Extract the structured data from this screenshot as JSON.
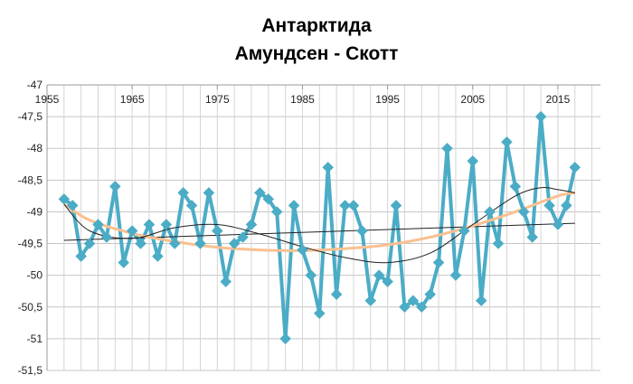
{
  "chart_data": {
    "type": "line",
    "title": "Антарктида",
    "subtitle": "Амундсен - Скотт",
    "xlabel": "",
    "ylabel": "",
    "xlim": [
      1955,
      2020
    ],
    "ylim": [
      -51.5,
      -47
    ],
    "x_ticks": [
      "1955",
      "1965",
      "1975",
      "1985",
      "1995",
      "2005",
      "2015"
    ],
    "y_ticks": [
      "-47",
      "-47,5",
      "-48",
      "-48,5",
      "-49",
      "-49,5",
      "-50",
      "-50,5",
      "-51",
      "-51,5"
    ],
    "grid": true,
    "legend": "none",
    "series": [
      {
        "kind": "data",
        "color": "#4bacc6",
        "marker": "diamond",
        "x": [
          1957,
          1958,
          1959,
          1960,
          1961,
          1962,
          1963,
          1964,
          1965,
          1966,
          1967,
          1968,
          1969,
          1970,
          1971,
          1972,
          1973,
          1974,
          1975,
          1976,
          1977,
          1978,
          1979,
          1980,
          1981,
          1982,
          1983,
          1984,
          1985,
          1986,
          1987,
          1988,
          1989,
          1990,
          1991,
          1992,
          1993,
          1994,
          1995,
          1996,
          1997,
          1998,
          1999,
          2000,
          2001,
          2002,
          2003,
          2004,
          2005,
          2006,
          2007,
          2008,
          2009,
          2010,
          2011,
          2012,
          2013,
          2014,
          2015,
          2016,
          2017
        ],
        "y": [
          -48.8,
          -48.9,
          -49.7,
          -49.5,
          -49.2,
          -49.4,
          -48.6,
          -49.8,
          -49.3,
          -49.5,
          -49.2,
          -49.7,
          -49.2,
          -49.5,
          -48.7,
          -48.9,
          -49.5,
          -48.7,
          -49.3,
          -50.1,
          -49.5,
          -49.4,
          -49.2,
          -48.7,
          -48.8,
          -49.0,
          -51.0,
          -48.9,
          -49.6,
          -50.0,
          -50.6,
          -48.3,
          -50.3,
          -48.9,
          -48.9,
          -49.3,
          -50.4,
          -50.0,
          -50.1,
          -48.9,
          -50.5,
          -50.4,
          -50.5,
          -50.3,
          -49.8,
          -48.0,
          -50.0,
          -49.3,
          -48.2,
          -50.4,
          -49.0,
          -49.5,
          -47.9,
          -48.6,
          -49.0,
          -49.4,
          -47.5,
          -48.9,
          -49.2,
          -48.9,
          -48.3
        ]
      },
      {
        "kind": "linear-trend",
        "color": "#222222",
        "x": [
          1957,
          2017
        ],
        "y": [
          -49.45,
          -49.18
        ]
      },
      {
        "kind": "polynomial-trend",
        "color": "#fac090",
        "x": [
          1957,
          1960,
          1965,
          1970,
          1975,
          1980,
          1985,
          1990,
          1995,
          2000,
          2005,
          2010,
          2015,
          2017
        ],
        "y": [
          -48.88,
          -49.13,
          -49.34,
          -49.47,
          -49.56,
          -49.6,
          -49.61,
          -49.58,
          -49.52,
          -49.4,
          -49.22,
          -49.0,
          -48.75,
          -48.7
        ]
      },
      {
        "kind": "polynomial-trend-2",
        "color": "#222222",
        "x": [
          1957,
          1960,
          1965,
          1970,
          1975,
          1980,
          1985,
          1990,
          1995,
          2000,
          2005,
          2010,
          2013,
          2015,
          2017
        ],
        "y": [
          -48.88,
          -49.3,
          -49.42,
          -49.25,
          -49.2,
          -49.35,
          -49.55,
          -49.72,
          -49.8,
          -49.65,
          -49.2,
          -48.75,
          -48.62,
          -48.65,
          -48.7
        ]
      }
    ]
  }
}
